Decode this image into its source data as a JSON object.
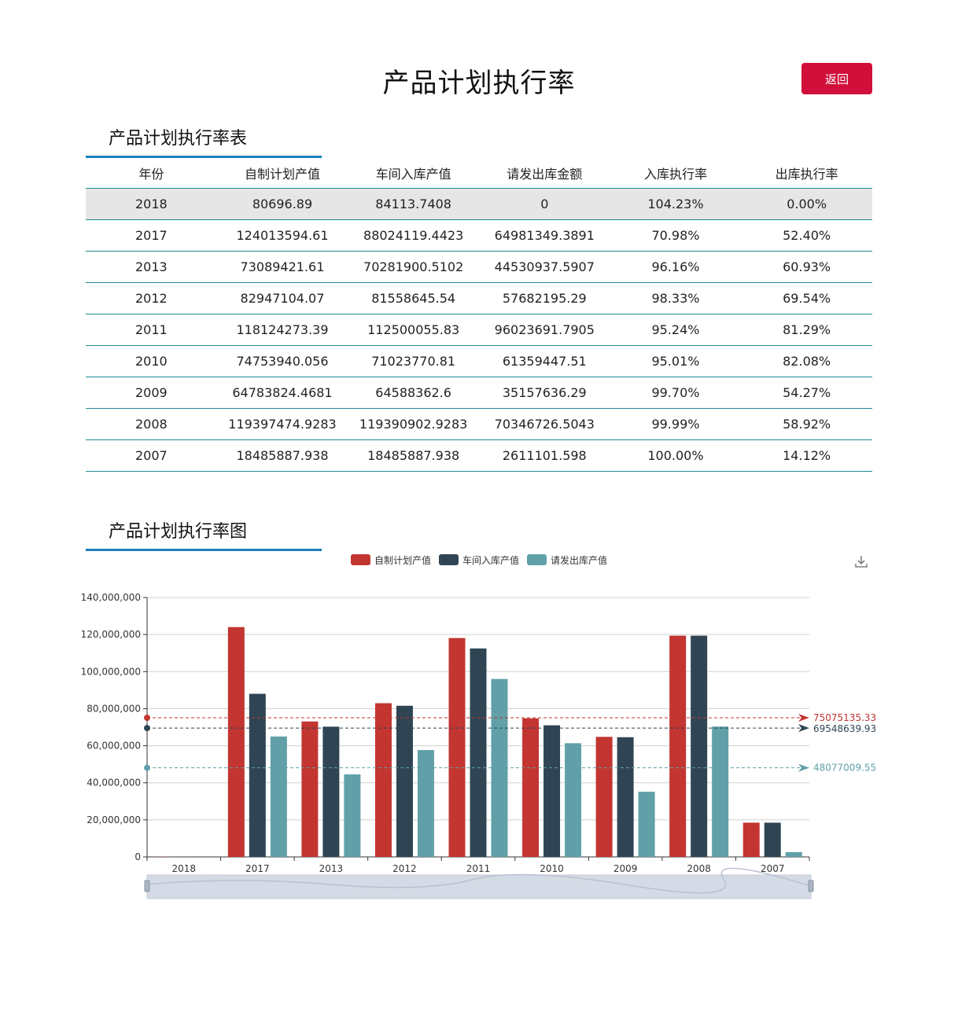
{
  "header": {
    "title": "产品计划执行率",
    "back_label": "返回"
  },
  "table_section": {
    "title": "产品计划执行率表"
  },
  "table": {
    "columns": [
      "年份",
      "自制计划产值",
      "车间入库产值",
      "请发出库金额",
      "入库执行率",
      "出库执行率"
    ],
    "rows": [
      [
        "2018",
        "80696.89",
        "84113.7408",
        "0",
        "104.23%",
        "0.00%"
      ],
      [
        "2017",
        "124013594.61",
        "88024119.4423",
        "64981349.3891",
        "70.98%",
        "52.40%"
      ],
      [
        "2013",
        "73089421.61",
        "70281900.5102",
        "44530937.5907",
        "96.16%",
        "60.93%"
      ],
      [
        "2012",
        "82947104.07",
        "81558645.54",
        "57682195.29",
        "98.33%",
        "69.54%"
      ],
      [
        "2011",
        "118124273.39",
        "112500055.83",
        "96023691.7905",
        "95.24%",
        "81.29%"
      ],
      [
        "2010",
        "74753940.056",
        "71023770.81",
        "61359447.51",
        "95.01%",
        "82.08%"
      ],
      [
        "2009",
        "64783824.4681",
        "64588362.6",
        "35157636.29",
        "99.70%",
        "54.27%"
      ],
      [
        "2008",
        "119397474.9283",
        "119390902.9283",
        "70346726.5043",
        "99.99%",
        "58.92%"
      ],
      [
        "2007",
        "18485887.938",
        "18485887.938",
        "2611101.598",
        "100.00%",
        "14.12%"
      ]
    ],
    "highlight_row": 0
  },
  "chart_section": {
    "title": "产品计划执行率图"
  },
  "chart_data": {
    "type": "bar",
    "categories": [
      "2018",
      "2017",
      "2013",
      "2012",
      "2011",
      "2010",
      "2009",
      "2008",
      "2007"
    ],
    "series": [
      {
        "name": "自制计划产值",
        "color": "#c23531",
        "values": [
          80696.89,
          124013594.61,
          73089421.61,
          82947104.07,
          118124273.39,
          74753940.056,
          64783824.4681,
          119397474.9283,
          18485887.938
        ],
        "mark_line": "75075135.33",
        "mark_value": 75075135.33
      },
      {
        "name": "车间入库产值",
        "color": "#2f4554",
        "values": [
          84113.7408,
          88024119.4423,
          70281900.5102,
          81558645.54,
          112500055.83,
          71023770.81,
          64588362.6,
          119390902.9283,
          18485887.938
        ],
        "mark_line": "69548639.93",
        "mark_value": 69548639.93
      },
      {
        "name": "请发出库产值",
        "color": "#61a0a8",
        "values": [
          0,
          64981349.3891,
          44530937.5907,
          57682195.29,
          96023691.7905,
          61359447.51,
          35157636.29,
          70346726.5043,
          2611101.598
        ],
        "mark_line": "48077009.55",
        "mark_value": 48077009.55
      }
    ],
    "y_ticks": [
      "0",
      "20,000,000",
      "40,000,000",
      "60,000,000",
      "80,000,000",
      "100,000,000",
      "120,000,000",
      "140,000,000"
    ],
    "ylim": [
      0,
      140000000
    ],
    "grid": true,
    "legend_position": "top-center"
  },
  "icons": {
    "download": "download-icon"
  }
}
